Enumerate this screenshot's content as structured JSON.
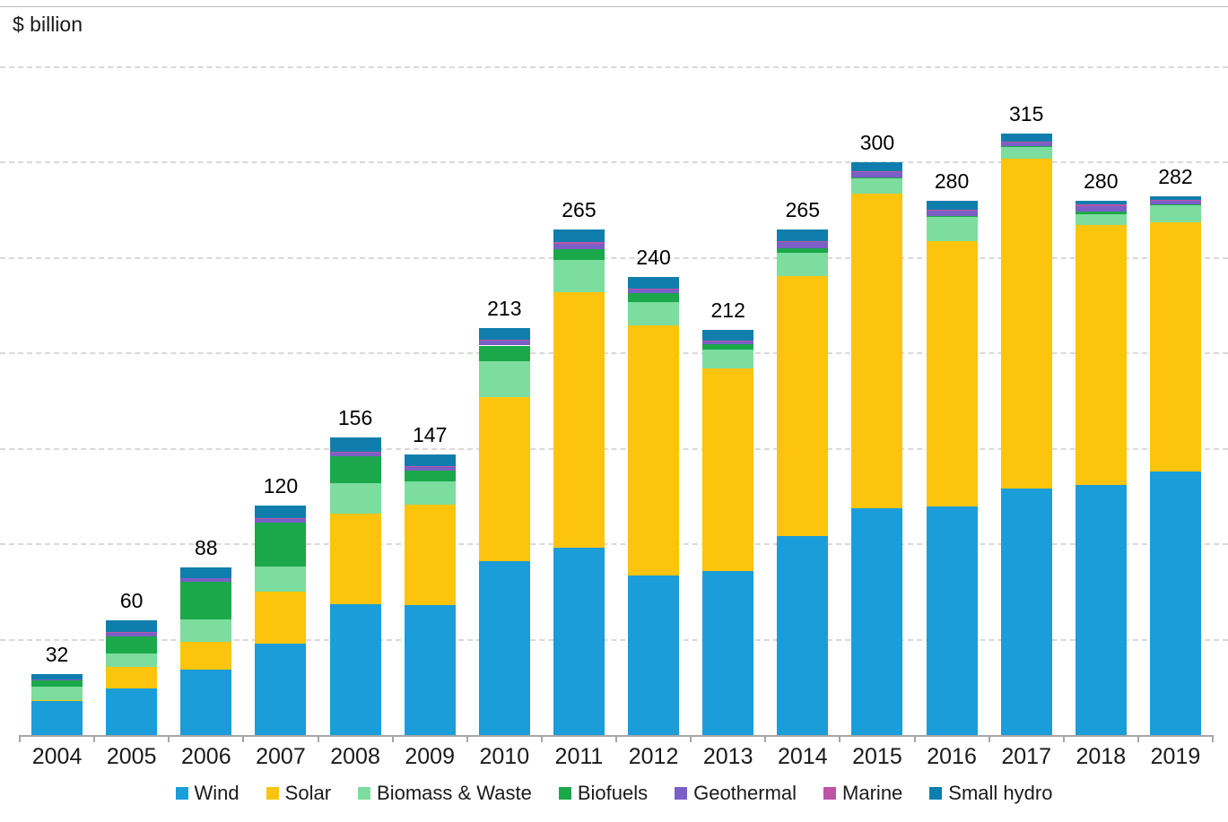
{
  "title": "$ billion",
  "chart_data": {
    "type": "bar",
    "stacked": true,
    "title": "$ billion",
    "xlabel": "",
    "ylabel": "$ billion",
    "ylim": [
      0,
      385
    ],
    "gridline_step": 50,
    "grid": "dashed-horizontal",
    "y_tick_labels_shown": false,
    "legend_position": "bottom",
    "categories": [
      "2004",
      "2005",
      "2006",
      "2007",
      "2008",
      "2009",
      "2010",
      "2011",
      "2012",
      "2013",
      "2014",
      "2015",
      "2016",
      "2017",
      "2018",
      "2019"
    ],
    "totals": [
      32,
      60,
      88,
      120,
      156,
      147,
      213,
      265,
      240,
      212,
      265,
      300,
      280,
      315,
      280,
      282
    ],
    "series": [
      {
        "key": "wind",
        "name": "Wind",
        "color": "#1b9dd9",
        "values": [
          18,
          24.5,
          34.5,
          48,
          68.5,
          68,
          91,
          98,
          83.5,
          86,
          104,
          119,
          119.5,
          129,
          131,
          138
        ]
      },
      {
        "key": "solar",
        "name": "Solar",
        "color": "#fdc40d",
        "values": [
          0.5,
          11,
          14.5,
          27,
          47.5,
          52.5,
          86,
          134,
          131,
          106,
          136.5,
          164.5,
          139,
          173,
          136,
          130.5
        ]
      },
      {
        "key": "biomass",
        "name": "Biomass & Waste",
        "color": "#7cdd9e",
        "values": [
          7,
          7,
          11.5,
          13.5,
          16,
          12.5,
          19,
          17,
          12.5,
          10,
          12,
          8,
          13,
          6,
          6,
          9
        ]
      },
      {
        "key": "biofuels",
        "name": "Biofuels",
        "color": "#1ba84a",
        "values": [
          3,
          9,
          20,
          23,
          14,
          5.5,
          8,
          5.5,
          4.5,
          2.5,
          2.5,
          0.5,
          0.5,
          0.5,
          1,
          0.5
        ]
      },
      {
        "key": "geothermal",
        "name": "Geothermal",
        "color": "#7a5fc6",
        "values": [
          0.5,
          2,
          1.5,
          1.5,
          2,
          2,
          2.5,
          3,
          2,
          1.5,
          3,
          3,
          2.5,
          2,
          3,
          2
        ]
      },
      {
        "key": "marine",
        "name": "Marine",
        "color": "#be53a6",
        "values": [
          0,
          0.5,
          0,
          0.5,
          0.5,
          0.5,
          0.5,
          0.5,
          0.5,
          0.5,
          0.5,
          0.5,
          0.5,
          0.5,
          1,
          0.5
        ]
      },
      {
        "key": "smallhydro",
        "name": "Small hydro",
        "color": "#0f7ead",
        "values": [
          3,
          6,
          6,
          6.5,
          7.5,
          6,
          6,
          7,
          6,
          5.5,
          6.5,
          4.5,
          5,
          4,
          2,
          1.5
        ]
      }
    ]
  }
}
